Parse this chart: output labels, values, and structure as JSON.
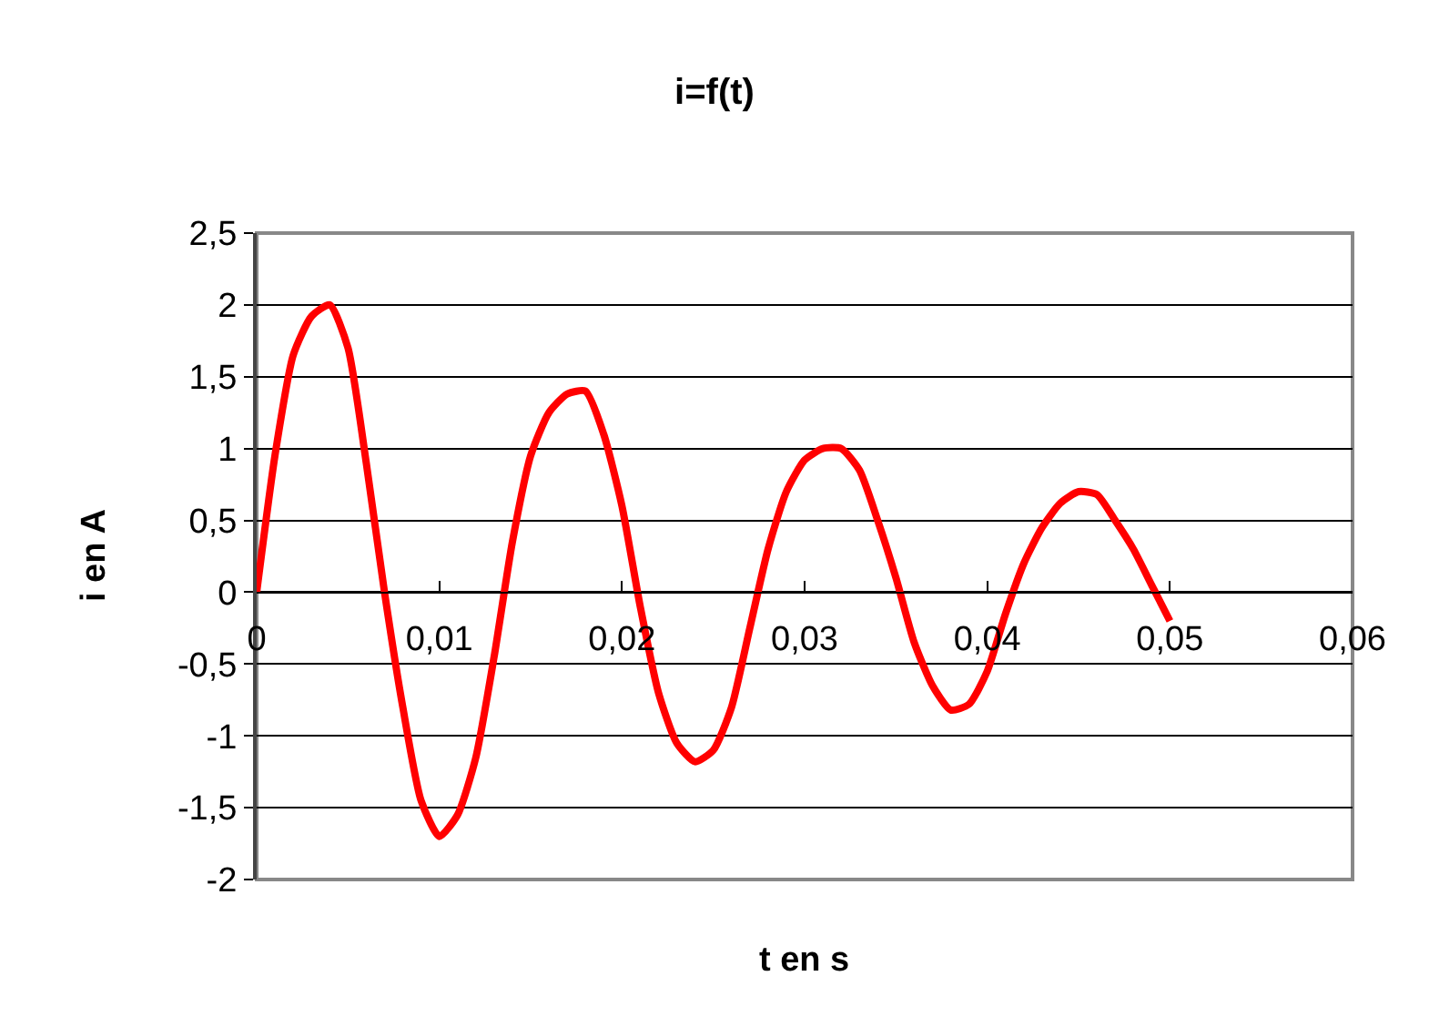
{
  "chart_data": {
    "type": "line",
    "title": "i=f(t)",
    "xlabel": "t en s",
    "ylabel": "i en A",
    "x": [
      0,
      0.001,
      0.002,
      0.003,
      0.004,
      0.005,
      0.006,
      0.007,
      0.008,
      0.009,
      0.01,
      0.011,
      0.012,
      0.013,
      0.014,
      0.015,
      0.016,
      0.017,
      0.018,
      0.019,
      0.02,
      0.021,
      0.022,
      0.023,
      0.024,
      0.025,
      0.026,
      0.027,
      0.028,
      0.029,
      0.03,
      0.031,
      0.032,
      0.033,
      0.034,
      0.035,
      0.036,
      0.037,
      0.038,
      0.039,
      0.04,
      0.041,
      0.042,
      0.043,
      0.044,
      0.045,
      0.046,
      0.047,
      0.048,
      0.049,
      0.05
    ],
    "series": [
      {
        "color": "#ff0000",
        "values": [
          0,
          0.95,
          1.65,
          1.92,
          2.0,
          1.7,
          0.9,
          0.0,
          -0.8,
          -1.45,
          -1.7,
          -1.55,
          -1.15,
          -0.45,
          0.35,
          0.95,
          1.25,
          1.38,
          1.4,
          1.1,
          0.6,
          -0.1,
          -0.7,
          -1.05,
          -1.18,
          -1.1,
          -0.8,
          -0.25,
          0.3,
          0.7,
          0.92,
          1.0,
          1.0,
          0.85,
          0.5,
          0.1,
          -0.35,
          -0.65,
          -0.82,
          -0.78,
          -0.55,
          -0.15,
          0.2,
          0.45,
          0.62,
          0.7,
          0.68,
          0.5,
          0.3,
          0.05,
          -0.2
        ]
      }
    ],
    "xlim": [
      0,
      0.06
    ],
    "xticks": [
      0,
      {
        "value": 0.01,
        "label": "0,01"
      },
      {
        "value": 0.02,
        "label": "0,02"
      },
      {
        "value": 0.03,
        "label": "0,03"
      },
      {
        "value": 0.04,
        "label": "0,04"
      },
      {
        "value": 0.05,
        "label": "0,05"
      },
      {
        "value": 0.06,
        "label": "0,06"
      }
    ],
    "ylim": [
      -2,
      2.5
    ],
    "yticks": [
      -2,
      {
        "value": -1.5,
        "label": "-1,5"
      },
      -1,
      {
        "value": -0.5,
        "label": "-0,5"
      },
      0,
      {
        "value": 0.5,
        "label": "0,5"
      },
      1,
      {
        "value": 1.5,
        "label": "1,5"
      },
      2,
      {
        "value": 2.5,
        "label": "2,5"
      }
    ],
    "grid": "y",
    "marker": "none",
    "line_style": "solid"
  }
}
